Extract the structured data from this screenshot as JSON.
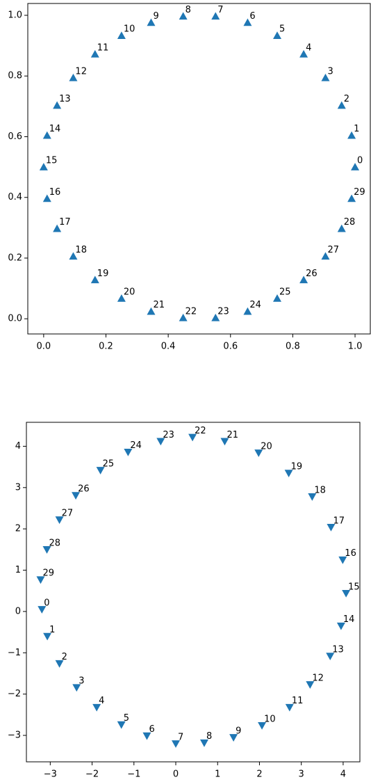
{
  "chart_data": [
    {
      "type": "scatter",
      "marker": "triangle-up",
      "color": "#1f77b4",
      "x": [
        1.0,
        0.989,
        0.957,
        0.905,
        0.835,
        0.75,
        0.655,
        0.552,
        0.448,
        0.345,
        0.25,
        0.165,
        0.095,
        0.043,
        0.011,
        0.0,
        0.011,
        0.043,
        0.095,
        0.165,
        0.25,
        0.345,
        0.448,
        0.552,
        0.655,
        0.75,
        0.835,
        0.905,
        0.957,
        0.989
      ],
      "values": [
        0.5,
        0.604,
        0.703,
        0.794,
        0.872,
        0.933,
        0.976,
        0.997,
        0.997,
        0.976,
        0.933,
        0.872,
        0.794,
        0.703,
        0.604,
        0.5,
        0.396,
        0.297,
        0.206,
        0.128,
        0.067,
        0.024,
        0.003,
        0.003,
        0.024,
        0.067,
        0.128,
        0.206,
        0.297,
        0.396
      ],
      "point_labels": [
        "0",
        "1",
        "2",
        "3",
        "4",
        "5",
        "6",
        "7",
        "8",
        "9",
        "10",
        "11",
        "12",
        "13",
        "14",
        "15",
        "16",
        "17",
        "18",
        "19",
        "20",
        "21",
        "22",
        "23",
        "24",
        "25",
        "26",
        "27",
        "28",
        "29"
      ],
      "xlim": [
        -0.051,
        1.049
      ],
      "ylim": [
        -0.05,
        1.039
      ],
      "xticks": [
        {
          "value": 0,
          "label": "0.0"
        },
        0.2,
        0.4,
        0.6,
        0.8,
        {
          "value": 1,
          "label": "1.0"
        }
      ],
      "yticks": [
        {
          "value": 0,
          "label": "0.0"
        },
        0.2,
        0.4,
        0.6,
        0.8,
        {
          "value": 1,
          "label": "1.0"
        }
      ]
    },
    {
      "type": "scatter",
      "marker": "triangle-down",
      "color": "#1f77b4",
      "x": [
        -3.2,
        -3.07,
        -2.78,
        -2.37,
        -1.89,
        -1.3,
        -0.69,
        0.0,
        0.68,
        1.38,
        2.06,
        2.72,
        3.21,
        3.69,
        3.95,
        4.07,
        3.99,
        3.71,
        3.26,
        2.7,
        1.98,
        1.17,
        0.4,
        -0.36,
        -1.14,
        -1.8,
        -2.39,
        -2.78,
        -3.08,
        -3.23
      ],
      "values": [
        0.05,
        -0.6,
        -1.26,
        -1.84,
        -2.32,
        -2.74,
        -3.01,
        -3.2,
        -3.18,
        -3.05,
        -2.76,
        -2.32,
        -1.77,
        -1.08,
        -0.35,
        0.44,
        1.25,
        2.04,
        2.78,
        3.35,
        3.84,
        4.12,
        4.22,
        4.12,
        3.86,
        3.42,
        2.81,
        2.22,
        1.5,
        0.77
      ],
      "point_labels": [
        "0",
        "1",
        "2",
        "3",
        "4",
        "5",
        "6",
        "7",
        "8",
        "9",
        "10",
        "11",
        "12",
        "13",
        "14",
        "15",
        "16",
        "17",
        "18",
        "19",
        "20",
        "21",
        "22",
        "23",
        "24",
        "25",
        "26",
        "27",
        "28",
        "29"
      ],
      "xlim": [
        -3.57,
        4.4
      ],
      "ylim": [
        -3.64,
        4.58
      ],
      "xticks": [
        {
          "value": -3,
          "label": "−3"
        },
        {
          "value": -2,
          "label": "−2"
        },
        {
          "value": -1,
          "label": "−1"
        },
        0,
        1,
        2,
        3,
        4
      ],
      "yticks": [
        {
          "value": -3,
          "label": "−3"
        },
        {
          "value": -2,
          "label": "−2"
        },
        {
          "value": -1,
          "label": "−1"
        },
        0,
        1,
        2,
        3,
        4
      ]
    }
  ]
}
